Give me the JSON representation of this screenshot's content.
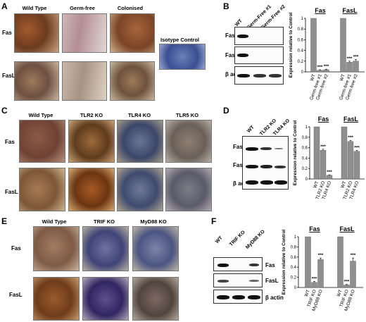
{
  "panels": {
    "A": {
      "letter": "A",
      "columns": [
        "Wild Type",
        "Germ-free",
        "Colonised"
      ],
      "rows": [
        "Fas",
        "FasL"
      ],
      "isotype_label": "Isotype Control"
    },
    "B": {
      "letter": "B",
      "lanes": [
        "WT",
        "Germ-Free #1",
        "Germ-Free #2"
      ],
      "bands": [
        "Fas",
        "FasL",
        "β actin"
      ],
      "ylabel": "Expression relative to Control"
    },
    "C": {
      "letter": "C",
      "columns": [
        "Wild Type",
        "TLR2 KO",
        "TLR4 KO",
        "TLR5 KO"
      ],
      "rows": [
        "Fas",
        "FasL"
      ]
    },
    "D": {
      "letter": "D",
      "lanes": [
        "WT",
        "TLR2 KO",
        "TLR4 KO"
      ],
      "bands": [
        "Fas",
        "FasL",
        "β actin"
      ],
      "ylabel": "Expression relative to Control"
    },
    "E": {
      "letter": "E",
      "columns": [
        "Wild Type",
        "TRIF KO",
        "MyD88 KO"
      ],
      "rows": [
        "Fas",
        "FasL"
      ]
    },
    "F": {
      "letter": "F",
      "lanes": [
        "WT",
        "TRIF KO",
        "MyD88 KO"
      ],
      "bands": [
        "Fas",
        "FasL",
        "β actin"
      ],
      "ylabel": "Expression relative to Control"
    }
  },
  "chart_data": [
    {
      "type": "bar",
      "panel": "B",
      "ylabel": "Expression relative to Control",
      "ylim": [
        0,
        1.0
      ],
      "yticks": [
        0,
        0.2,
        0.4,
        0.6,
        0.8,
        1.0
      ],
      "groups": [
        {
          "title": "Fas",
          "categories": [
            "WT",
            "Germ-free #1",
            "Germ-free #2"
          ],
          "values": [
            1.0,
            0.03,
            0.04
          ],
          "errors": [
            0,
            0.01,
            0.01
          ],
          "significance": [
            "",
            "***",
            "***"
          ]
        },
        {
          "title": "FasL",
          "categories": [
            "WT",
            "Germ-free #1",
            "Germ-free #2"
          ],
          "values": [
            1.0,
            0.18,
            0.2
          ],
          "errors": [
            0,
            0.02,
            0.03
          ],
          "significance": [
            "",
            "***",
            "***"
          ]
        }
      ]
    },
    {
      "type": "bar",
      "panel": "D",
      "ylabel": "Expression relative to Control",
      "ylim": [
        0,
        1.0
      ],
      "yticks": [
        0,
        0.2,
        0.4,
        0.6,
        0.8,
        1.0
      ],
      "groups": [
        {
          "title": "Fas",
          "categories": [
            "WT",
            "TLR2 KO",
            "TLR4 KO"
          ],
          "values": [
            1.0,
            0.55,
            0.07
          ],
          "errors": [
            0,
            0.02,
            0.01
          ],
          "significance": [
            "",
            "***",
            "***"
          ]
        },
        {
          "title": "FasL",
          "categories": [
            "WT",
            "TLR2 KO",
            "TLR4 KO"
          ],
          "values": [
            1.0,
            0.72,
            0.53
          ],
          "errors": [
            0,
            0.02,
            0.02
          ],
          "significance": [
            "",
            "***",
            "***"
          ]
        }
      ]
    },
    {
      "type": "bar",
      "panel": "F",
      "ylabel": "Expression relative to Control",
      "ylim": [
        0,
        1.0
      ],
      "yticks": [
        0,
        0.2,
        0.4,
        0.6,
        0.8,
        1.0
      ],
      "groups": [
        {
          "title": "Fas",
          "categories": [
            "WT",
            "TRIF KO",
            "MyD88 KO"
          ],
          "values": [
            1.0,
            0.1,
            0.55
          ],
          "errors": [
            0,
            0.02,
            0.03
          ],
          "significance": [
            "",
            "***",
            "***"
          ]
        },
        {
          "title": "FasL",
          "categories": [
            "WT",
            "TRIF KO",
            "MyD88 KO"
          ],
          "values": [
            1.0,
            0.05,
            0.52
          ],
          "errors": [
            0,
            0.01,
            0.06
          ],
          "significance": [
            "",
            "***",
            "***"
          ]
        }
      ]
    }
  ]
}
